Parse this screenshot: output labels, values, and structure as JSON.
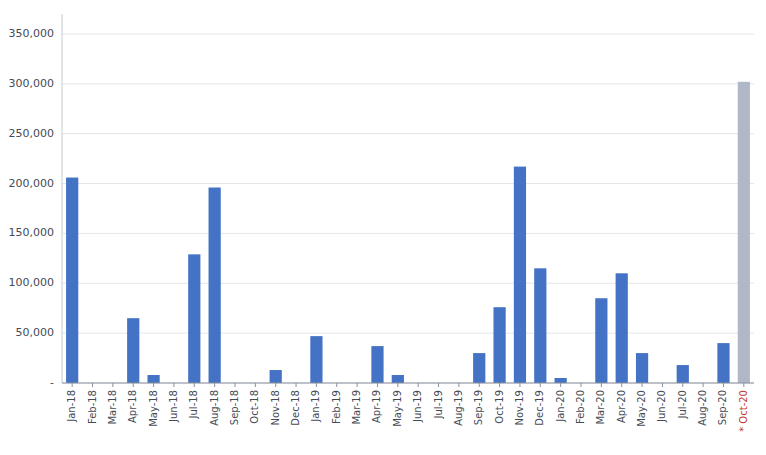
{
  "chart_data": {
    "type": "bar",
    "categories": [
      "Jan-18",
      "Feb-18",
      "Mar-18",
      "Apr-18",
      "May-18",
      "Jun-18",
      "Jul-18",
      "Aug-18",
      "Sep-18",
      "Oct-18",
      "Nov-18",
      "Dec-18",
      "Jan-19",
      "Feb-19",
      "Mar-19",
      "Apr-19",
      "May-19",
      "Jun-19",
      "Jul-19",
      "Aug-19",
      "Sep-19",
      "Oct-19",
      "Nov-19",
      "Dec-19",
      "Jan-20",
      "Feb-20",
      "Mar-20",
      "Apr-20",
      "May-20",
      "Jun-20",
      "Jul-20",
      "Aug-20",
      "Sep-20",
      "* Oct-20"
    ],
    "values": [
      206000,
      0,
      0,
      65000,
      8000,
      0,
      129000,
      196000,
      0,
      0,
      13000,
      0,
      47000,
      0,
      0,
      37000,
      8000,
      0,
      0,
      0,
      30000,
      76000,
      217000,
      115000,
      5000,
      0,
      85000,
      110000,
      30000,
      0,
      18000,
      0,
      40000,
      302000
    ],
    "colors": [
      "#4472c4",
      "#4472c4",
      "#4472c4",
      "#4472c4",
      "#4472c4",
      "#4472c4",
      "#4472c4",
      "#4472c4",
      "#4472c4",
      "#4472c4",
      "#4472c4",
      "#4472c4",
      "#4472c4",
      "#4472c4",
      "#4472c4",
      "#4472c4",
      "#4472c4",
      "#4472c4",
      "#4472c4",
      "#4472c4",
      "#4472c4",
      "#4472c4",
      "#4472c4",
      "#4472c4",
      "#4472c4",
      "#4472c4",
      "#4472c4",
      "#4472c4",
      "#4472c4",
      "#4472c4",
      "#4472c4",
      "#4472c4",
      "#4472c4",
      "#b0b8c8"
    ],
    "ylim": [
      0,
      370000
    ],
    "yticks": [
      {
        "value": 0,
        "label": "-"
      },
      {
        "value": 50000,
        "label": "50,000"
      },
      {
        "value": 100000,
        "label": "100,000"
      },
      {
        "value": 150000,
        "label": "150,000"
      },
      {
        "value": 200000,
        "label": "200,000"
      },
      {
        "value": 250000,
        "label": "250,000"
      },
      {
        "value": 300000,
        "label": "300,000"
      },
      {
        "value": 350000,
        "label": "350,000"
      }
    ],
    "grid": true
  }
}
